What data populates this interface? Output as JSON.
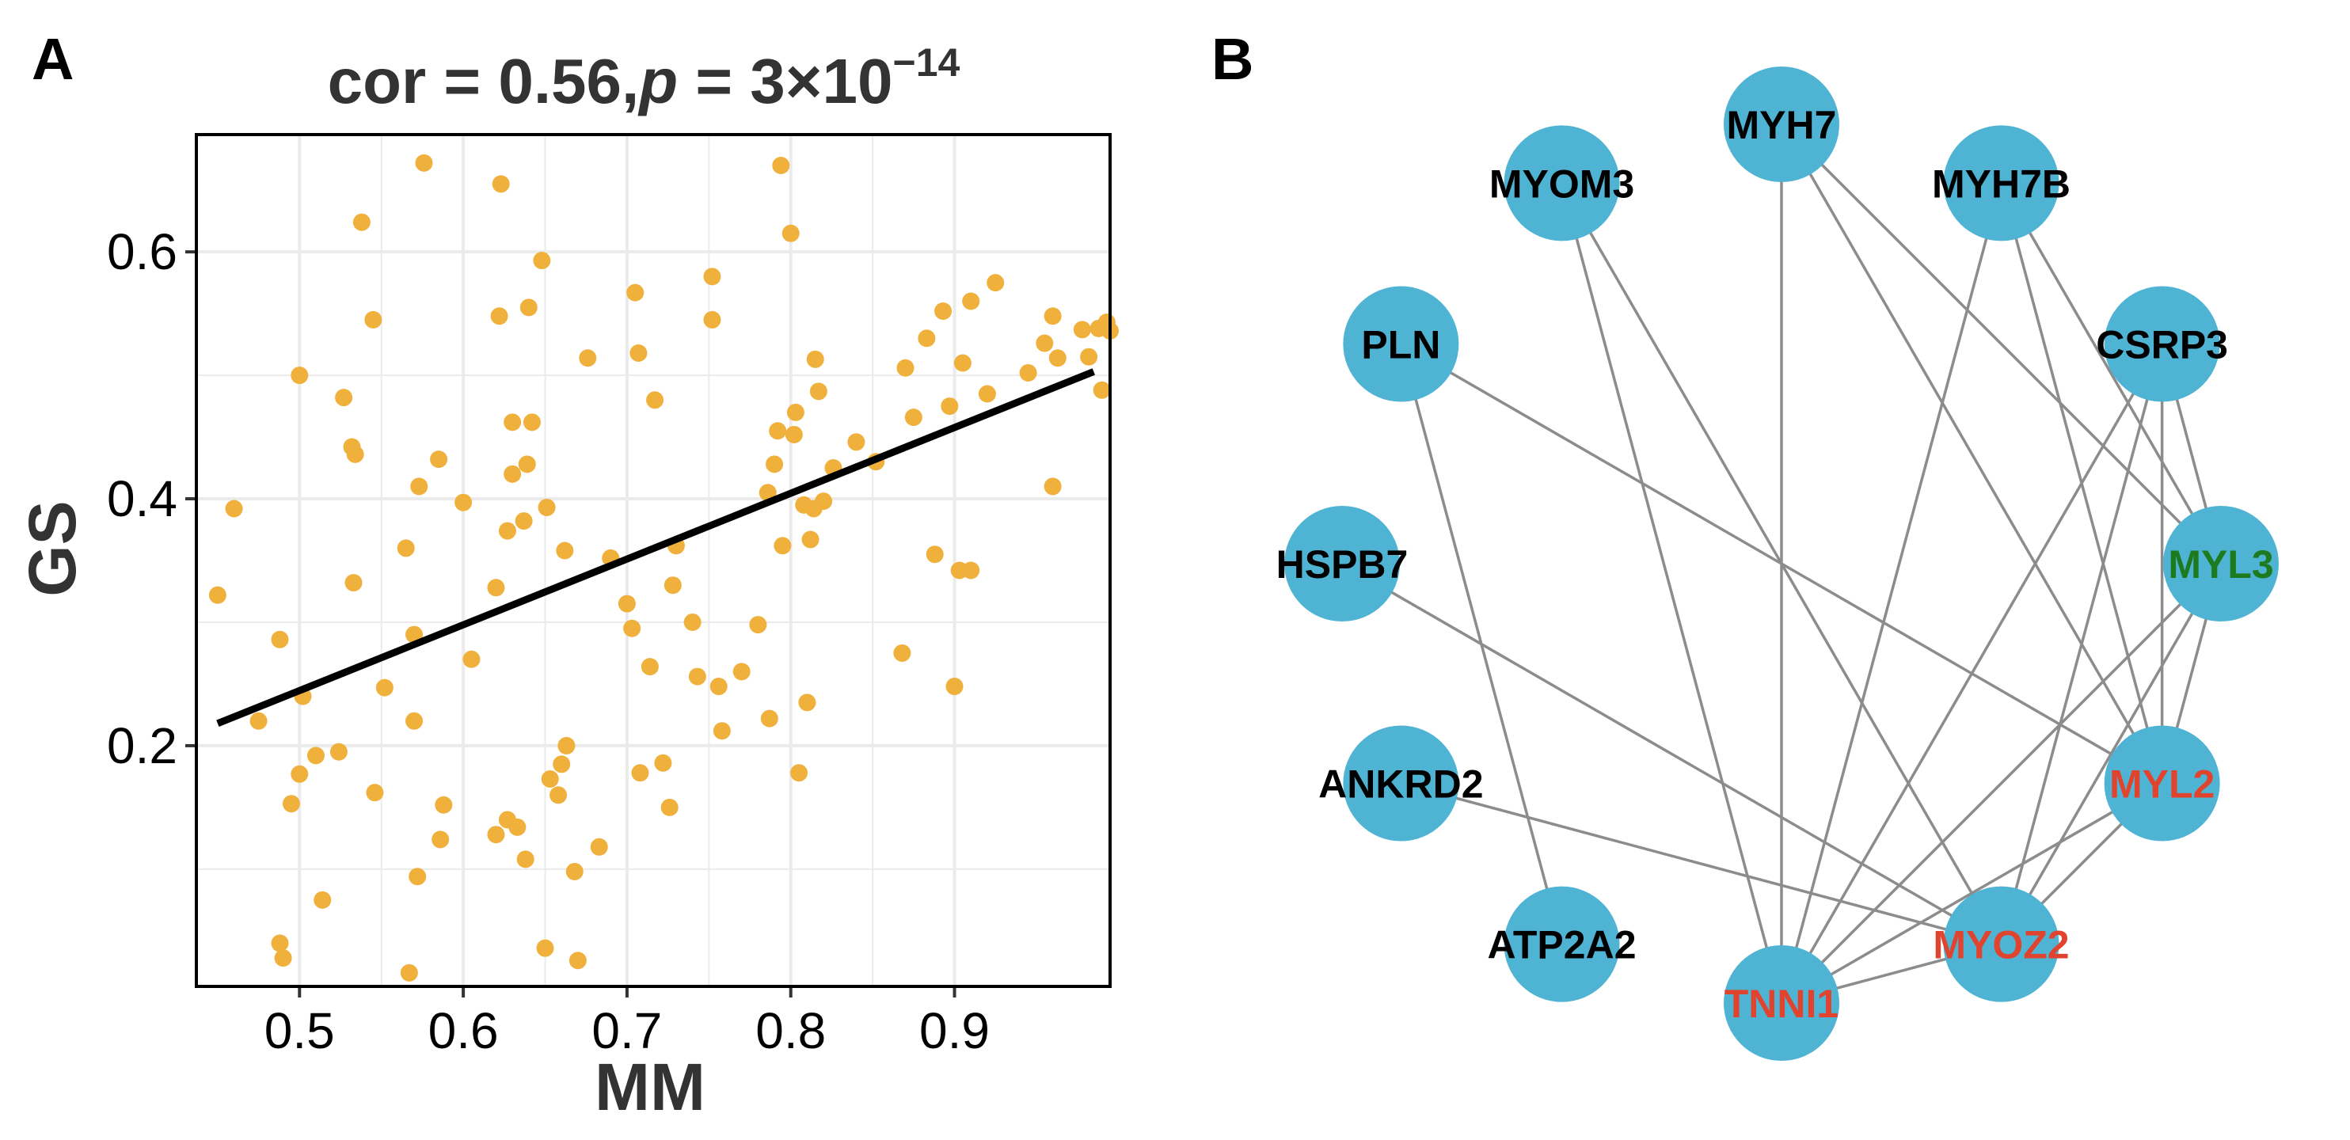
{
  "panels": {
    "a_label": "A",
    "b_label": "B"
  },
  "colors": {
    "point": "#F0B03C",
    "fit_line": "#000000",
    "grid": "#EBEBEB",
    "node_fill": "#4FB3D4",
    "edge": "#8C8C8C",
    "label_default": "#000000",
    "label_red": "#E0442E",
    "label_green": "#1E7A1E"
  },
  "chart_data": [
    {
      "type": "scatter",
      "title": {
        "prefix": "cor = 0.56,",
        "p_symbol": "p",
        "mid": " = 3×10",
        "exponent": "−14"
      },
      "xlabel": "MM",
      "ylabel": "GS",
      "xlim": [
        0.437,
        0.995
      ],
      "ylim": [
        0.005,
        0.695
      ],
      "xticks": [
        0.5,
        0.6,
        0.7,
        0.8,
        0.9
      ],
      "xtick_labels": [
        "0.5",
        "0.6",
        "0.7",
        "0.8",
        "0.9"
      ],
      "yticks": [
        0.2,
        0.4,
        0.6
      ],
      "ytick_labels": [
        "0.2",
        "0.4",
        "0.6"
      ],
      "grid": true,
      "fit_line": {
        "x": [
          0.45,
          0.985
        ],
        "y": [
          0.218,
          0.503
        ]
      },
      "points": [
        [
          0.45,
          0.322
        ],
        [
          0.46,
          0.392
        ],
        [
          0.475,
          0.22
        ],
        [
          0.488,
          0.286
        ],
        [
          0.488,
          0.04
        ],
        [
          0.49,
          0.028
        ],
        [
          0.495,
          0.153
        ],
        [
          0.5,
          0.5
        ],
        [
          0.5,
          0.177
        ],
        [
          0.502,
          0.24
        ],
        [
          0.51,
          0.192
        ],
        [
          0.514,
          0.075
        ],
        [
          0.524,
          0.195
        ],
        [
          0.527,
          0.482
        ],
        [
          0.532,
          0.442
        ],
        [
          0.533,
          0.332
        ],
        [
          0.534,
          0.436
        ],
        [
          0.538,
          0.624
        ],
        [
          0.545,
          0.545
        ],
        [
          0.546,
          0.162
        ],
        [
          0.552,
          0.247
        ],
        [
          0.565,
          0.36
        ],
        [
          0.567,
          0.016
        ],
        [
          0.57,
          0.29
        ],
        [
          0.57,
          0.22
        ],
        [
          0.572,
          0.094
        ],
        [
          0.573,
          0.41
        ],
        [
          0.576,
          0.672
        ],
        [
          0.585,
          0.432
        ],
        [
          0.586,
          0.124
        ],
        [
          0.588,
          0.152
        ],
        [
          0.6,
          0.397
        ],
        [
          0.605,
          0.27
        ],
        [
          0.62,
          0.128
        ],
        [
          0.62,
          0.328
        ],
        [
          0.622,
          0.548
        ],
        [
          0.623,
          0.655
        ],
        [
          0.627,
          0.14
        ],
        [
          0.627,
          0.374
        ],
        [
          0.63,
          0.462
        ],
        [
          0.63,
          0.42
        ],
        [
          0.633,
          0.134
        ],
        [
          0.637,
          0.382
        ],
        [
          0.638,
          0.108
        ],
        [
          0.639,
          0.428
        ],
        [
          0.64,
          0.555
        ],
        [
          0.642,
          0.462
        ],
        [
          0.648,
          0.593
        ],
        [
          0.65,
          0.036
        ],
        [
          0.651,
          0.393
        ],
        [
          0.653,
          0.173
        ],
        [
          0.658,
          0.16
        ],
        [
          0.66,
          0.185
        ],
        [
          0.662,
          0.358
        ],
        [
          0.663,
          0.2
        ],
        [
          0.668,
          0.098
        ],
        [
          0.67,
          0.026
        ],
        [
          0.676,
          0.514
        ],
        [
          0.683,
          0.118
        ],
        [
          0.69,
          0.352
        ],
        [
          0.7,
          0.315
        ],
        [
          0.703,
          0.295
        ],
        [
          0.705,
          0.567
        ],
        [
          0.707,
          0.518
        ],
        [
          0.708,
          0.178
        ],
        [
          0.714,
          0.264
        ],
        [
          0.717,
          0.48
        ],
        [
          0.722,
          0.186
        ],
        [
          0.726,
          0.15
        ],
        [
          0.728,
          0.33
        ],
        [
          0.73,
          0.362
        ],
        [
          0.74,
          0.3
        ],
        [
          0.743,
          0.256
        ],
        [
          0.752,
          0.58
        ],
        [
          0.752,
          0.545
        ],
        [
          0.756,
          0.248
        ],
        [
          0.758,
          0.212
        ],
        [
          0.77,
          0.26
        ],
        [
          0.78,
          0.298
        ],
        [
          0.786,
          0.405
        ],
        [
          0.787,
          0.222
        ],
        [
          0.79,
          0.428
        ],
        [
          0.792,
          0.455
        ],
        [
          0.794,
          0.67
        ],
        [
          0.795,
          0.362
        ],
        [
          0.8,
          0.615
        ],
        [
          0.802,
          0.452
        ],
        [
          0.803,
          0.47
        ],
        [
          0.805,
          0.178
        ],
        [
          0.808,
          0.395
        ],
        [
          0.81,
          0.235
        ],
        [
          0.812,
          0.367
        ],
        [
          0.814,
          0.392
        ],
        [
          0.815,
          0.513
        ],
        [
          0.817,
          0.487
        ],
        [
          0.82,
          0.398
        ],
        [
          0.826,
          0.425
        ],
        [
          0.84,
          0.446
        ],
        [
          0.852,
          0.43
        ],
        [
          0.868,
          0.275
        ],
        [
          0.87,
          0.506
        ],
        [
          0.875,
          0.466
        ],
        [
          0.883,
          0.53
        ],
        [
          0.888,
          0.355
        ],
        [
          0.893,
          0.552
        ],
        [
          0.897,
          0.475
        ],
        [
          0.9,
          0.248
        ],
        [
          0.903,
          0.342
        ],
        [
          0.905,
          0.51
        ],
        [
          0.91,
          0.342
        ],
        [
          0.91,
          0.56
        ],
        [
          0.92,
          0.485
        ],
        [
          0.925,
          0.575
        ],
        [
          0.945,
          0.502
        ],
        [
          0.955,
          0.526
        ],
        [
          0.96,
          0.548
        ],
        [
          0.96,
          0.41
        ],
        [
          0.963,
          0.514
        ],
        [
          0.978,
          0.537
        ],
        [
          0.982,
          0.515
        ],
        [
          0.988,
          0.538
        ],
        [
          0.99,
          0.488
        ],
        [
          0.993,
          0.543
        ],
        [
          0.995,
          0.536
        ]
      ]
    },
    {
      "type": "network",
      "layout": "circle",
      "nodes": [
        {
          "id": "MYH7",
          "label_color": "default"
        },
        {
          "id": "MYH7B",
          "label_color": "default"
        },
        {
          "id": "CSRP3",
          "label_color": "default"
        },
        {
          "id": "MYL3",
          "label_color": "green"
        },
        {
          "id": "MYL2",
          "label_color": "red"
        },
        {
          "id": "MYOZ2",
          "label_color": "red"
        },
        {
          "id": "TNNI1",
          "label_color": "red"
        },
        {
          "id": "ATP2A2",
          "label_color": "default"
        },
        {
          "id": "ANKRD2",
          "label_color": "default"
        },
        {
          "id": "HSPB7",
          "label_color": "default"
        },
        {
          "id": "PLN",
          "label_color": "default"
        },
        {
          "id": "MYOM3",
          "label_color": "default"
        }
      ],
      "edges": [
        [
          "MYH7",
          "TNNI1"
        ],
        [
          "MYH7",
          "MYL3"
        ],
        [
          "MYH7",
          "MYL2"
        ],
        [
          "MYOM3",
          "TNNI1"
        ],
        [
          "MYOM3",
          "MYOZ2"
        ],
        [
          "MYH7B",
          "TNNI1"
        ],
        [
          "MYH7B",
          "MYL3"
        ],
        [
          "MYH7B",
          "MYL2"
        ],
        [
          "CSRP3",
          "TNNI1"
        ],
        [
          "CSRP3",
          "MYOZ2"
        ],
        [
          "CSRP3",
          "MYL3"
        ],
        [
          "CSRP3",
          "MYL2"
        ],
        [
          "PLN",
          "MYL2"
        ],
        [
          "PLN",
          "ATP2A2"
        ],
        [
          "HSPB7",
          "MYOZ2"
        ],
        [
          "ANKRD2",
          "MYOZ2"
        ],
        [
          "MYL3",
          "TNNI1"
        ],
        [
          "MYL3",
          "MYOZ2"
        ],
        [
          "MYL3",
          "MYL2"
        ],
        [
          "MYL2",
          "TNNI1"
        ],
        [
          "MYL2",
          "MYOZ2"
        ],
        [
          "MYOZ2",
          "TNNI1"
        ]
      ]
    }
  ]
}
